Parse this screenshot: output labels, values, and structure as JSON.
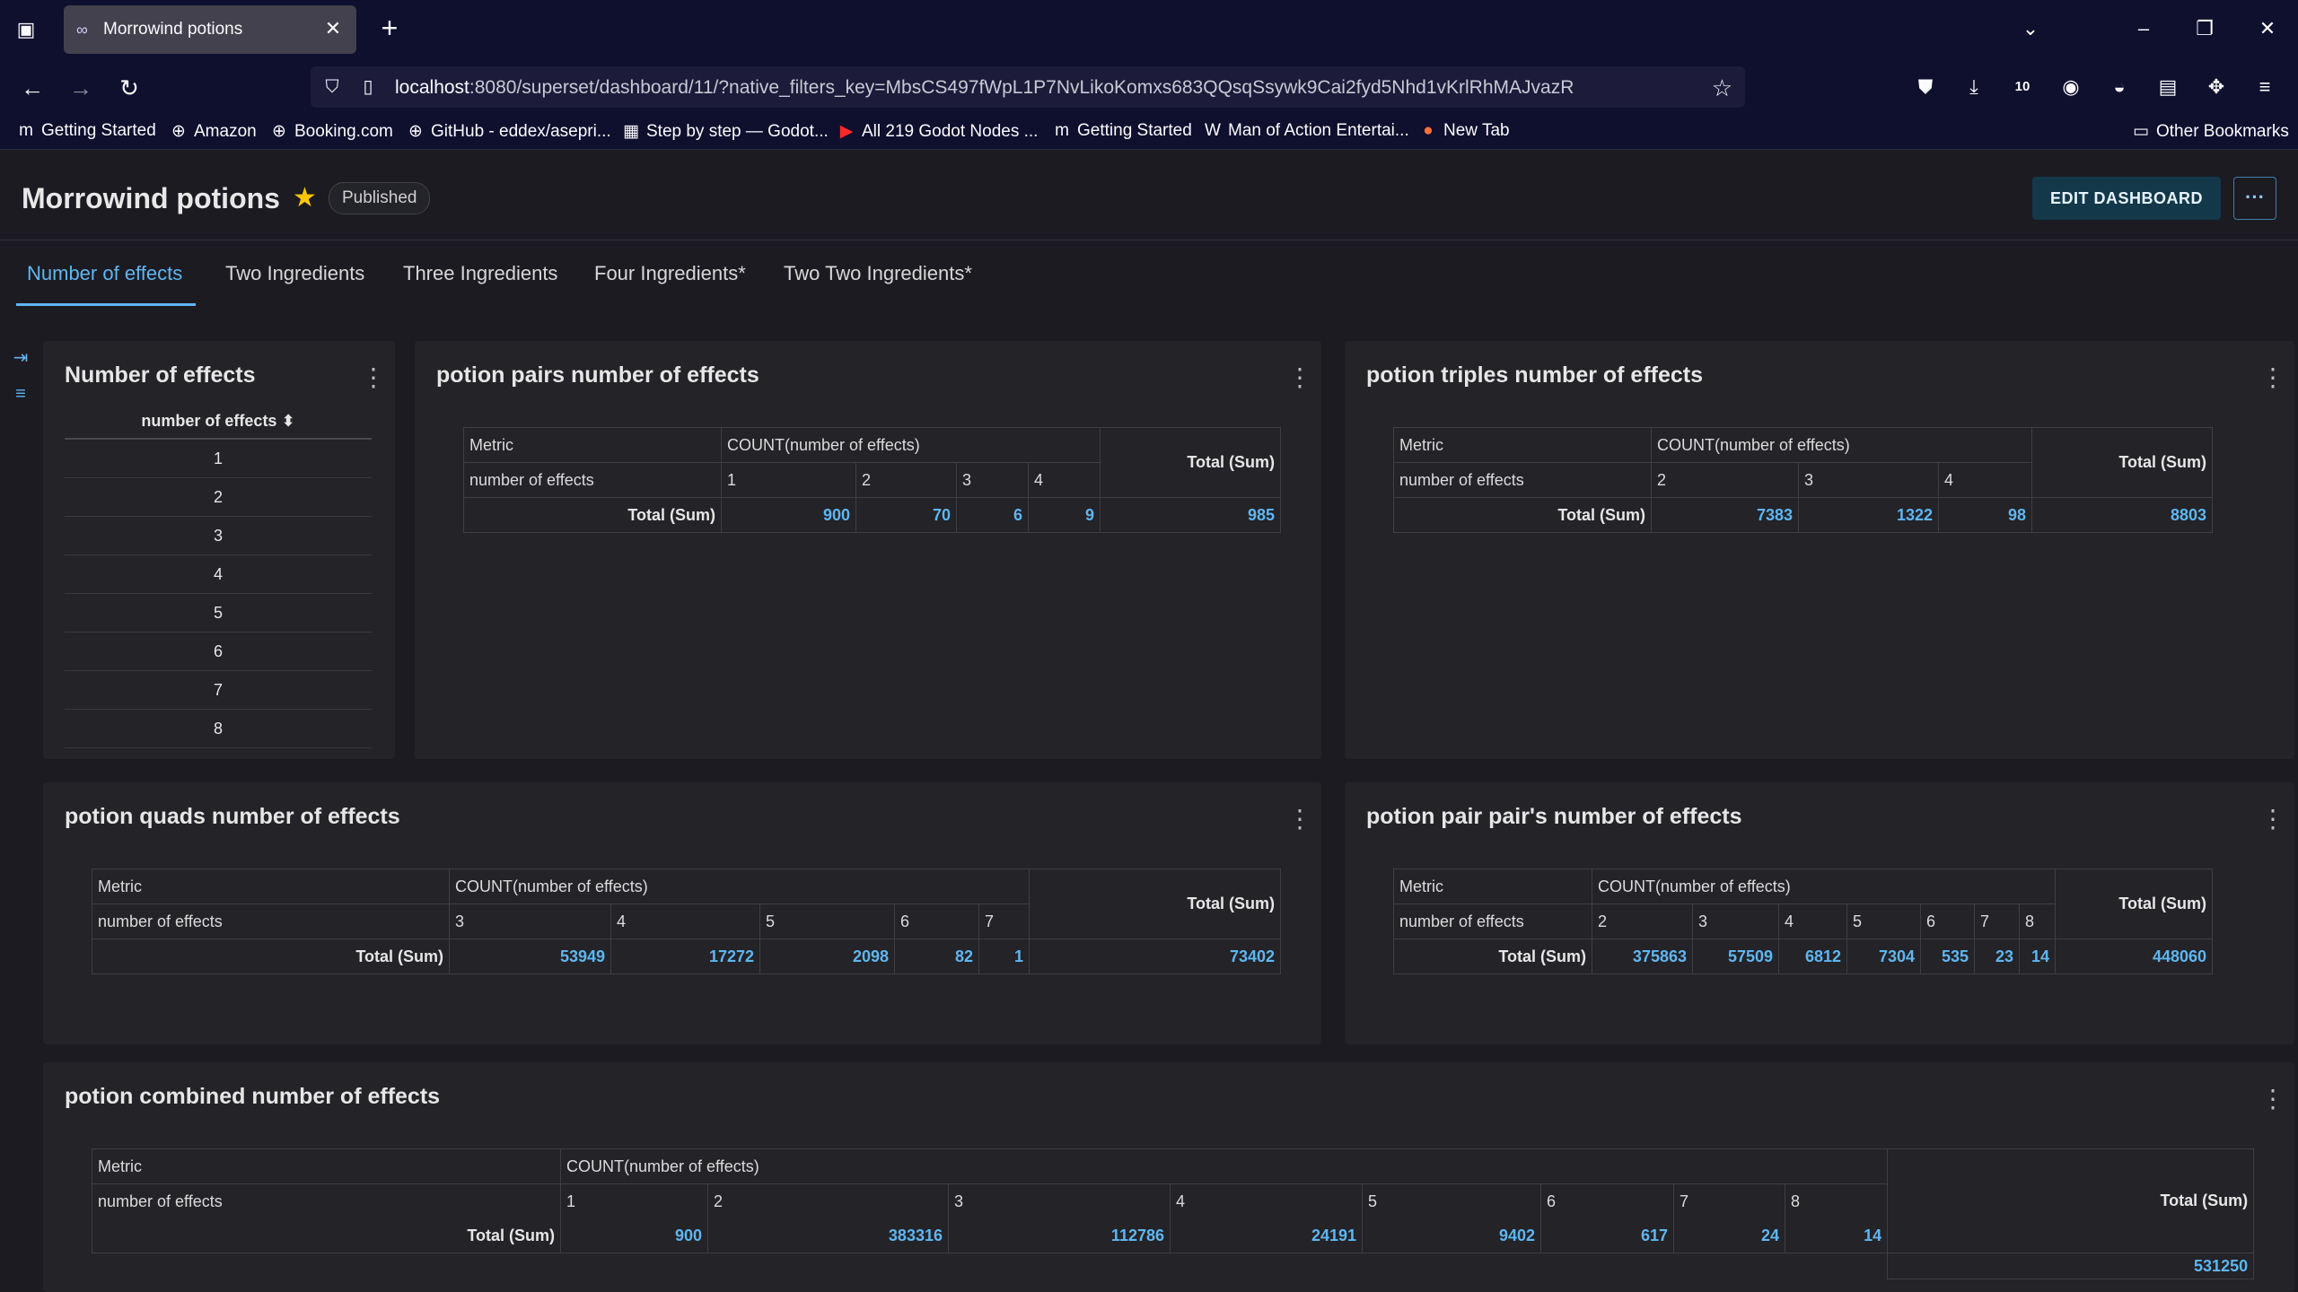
{
  "browser": {
    "tab_title": "Morrowind potions",
    "url_host": "localhost",
    "url_path": ":8080/superset/dashboard/11/?native_filters_key=MbsCS497fWpL1P7NvLikoKomxs683QQsqSsywk9Cai2fyd5Nhd1vKrlRhMAJvazR",
    "toolbar_badge": "10",
    "bookmarks": [
      "Getting Started",
      "Amazon",
      "Booking.com",
      "GitHub - eddex/asepri...",
      "Step by step — Godot...",
      "All 219 Godot Nodes ...",
      "Getting Started",
      "Man of Action Entertai...",
      "New Tab"
    ],
    "other_bookmarks": "Other Bookmarks"
  },
  "dashboard": {
    "title": "Morrowind potions",
    "status": "Published",
    "edit_label": "EDIT DASHBOARD",
    "more_label": "···",
    "tabs": [
      "Number of effects",
      "Two Ingredients",
      "Three Ingredients",
      "Four Ingredients*",
      "Two Two Ingredients*"
    ]
  },
  "labels": {
    "metric": "Metric",
    "count_metric": "COUNT(number of effects)",
    "row_label": "number of effects",
    "total": "Total (Sum)"
  },
  "charts": {
    "effects_list": {
      "title": "Number of effects",
      "column": "number of effects",
      "sort_icon": "sort-icon",
      "rows": [
        "1",
        "2",
        "3",
        "4",
        "5",
        "6",
        "7",
        "8"
      ]
    },
    "pairs": {
      "title": "potion pairs number of effects",
      "columns": [
        "1",
        "2",
        "3",
        "4"
      ],
      "values": [
        "900",
        "70",
        "6",
        "9"
      ],
      "total": "985"
    },
    "triples": {
      "title": "potion triples number of effects",
      "columns": [
        "2",
        "3",
        "4"
      ],
      "values": [
        "7383",
        "1322",
        "98"
      ],
      "total": "8803"
    },
    "quads": {
      "title": "potion quads number of effects",
      "columns": [
        "3",
        "4",
        "5",
        "6",
        "7"
      ],
      "values": [
        "53949",
        "17272",
        "2098",
        "82",
        "1"
      ],
      "total": "73402"
    },
    "pair_pairs": {
      "title": "potion pair pair's number of effects",
      "columns": [
        "2",
        "3",
        "4",
        "5",
        "6",
        "7",
        "8"
      ],
      "values": [
        "375863",
        "57509",
        "6812",
        "7304",
        "535",
        "23",
        "14"
      ],
      "total": "448060"
    },
    "combined": {
      "title": "potion combined number of effects",
      "columns": [
        "1",
        "2",
        "3",
        "4",
        "5",
        "6",
        "7",
        "8"
      ],
      "values": [
        "900",
        "383316",
        "112786",
        "24191",
        "9402",
        "617",
        "24",
        "14"
      ],
      "total": "531250"
    }
  }
}
